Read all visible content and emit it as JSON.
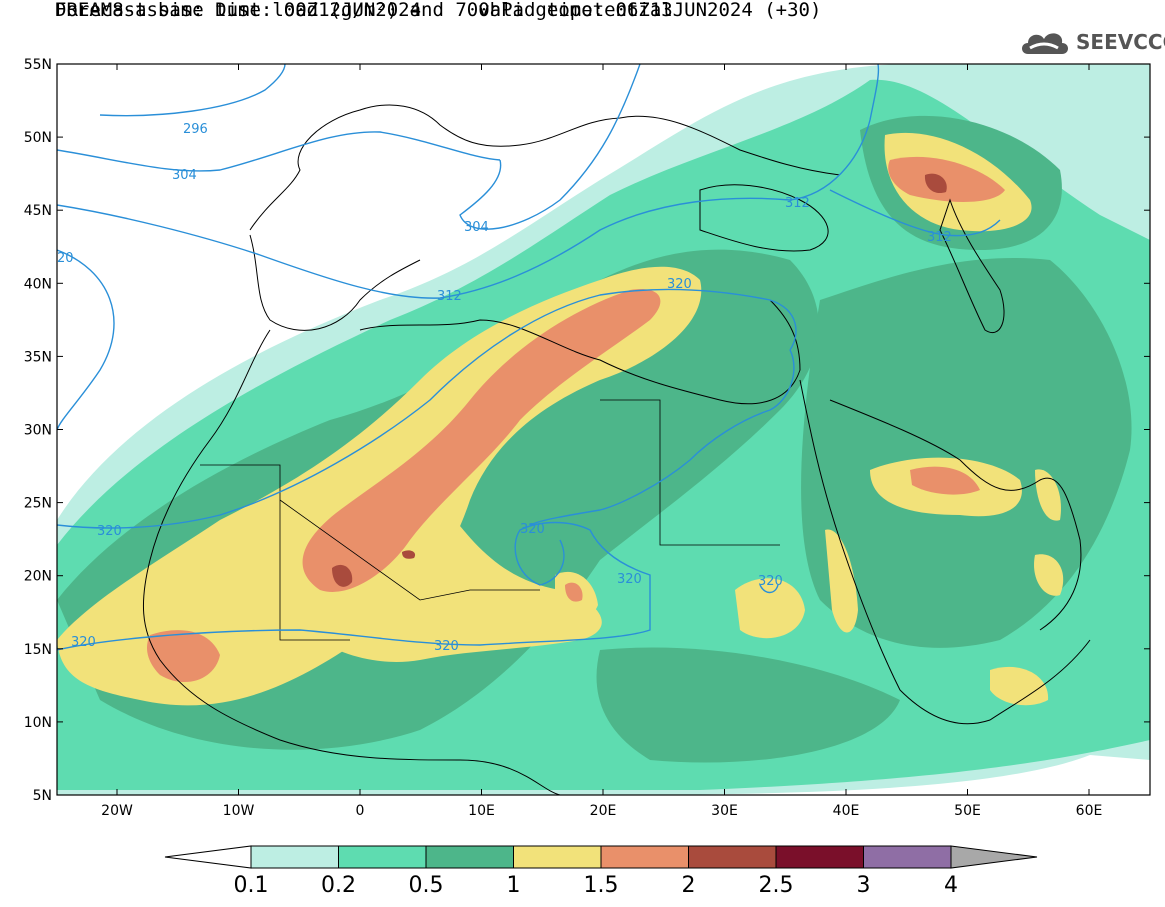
{
  "title": {
    "line1": "DREAM8-assim: Dust load (g/m²) and 700hPa geopotential",
    "line2": "Forecast base time: 00Z12JUN2024     valid time: 06Z13JUN2024 (+30)"
  },
  "logo": {
    "text": "SEEVCCC",
    "icon": "cloud-logo-icon"
  },
  "axes": {
    "lat_labels": [
      "55N",
      "50N",
      "45N",
      "40N",
      "35N",
      "30N",
      "25N",
      "20N",
      "15N",
      "10N",
      "5N"
    ],
    "lon_labels": [
      "20W",
      "10W",
      "0",
      "10E",
      "20E",
      "30E",
      "40E",
      "50E",
      "60E"
    ]
  },
  "contour_labels": [
    "296",
    "304",
    "304",
    "312",
    "20",
    "312",
    "312",
    "320",
    "320",
    "320",
    "320",
    "320",
    "320",
    "320"
  ],
  "colorbar": {
    "labels": [
      "0.1",
      "0.2",
      "0.5",
      "1",
      "1.5",
      "2",
      "2.5",
      "3",
      "4"
    ],
    "colors": [
      "#ffffff",
      "#bdeee3",
      "#5edcb0",
      "#4db68a",
      "#f2e27a",
      "#e9906a",
      "#a94b3d",
      "#7a0f2a",
      "#8f6ea5",
      "#a8a8a8"
    ]
  },
  "colors": {
    "contour": "#2a8fd8",
    "coast": "#000000",
    "dust_0_1": "#bdeee3",
    "dust_0_2": "#5edcb0",
    "dust_0_5": "#4db68a",
    "dust_1": "#f2e27a",
    "dust_1_5": "#e9906a",
    "dust_2": "#a94b3d"
  }
}
